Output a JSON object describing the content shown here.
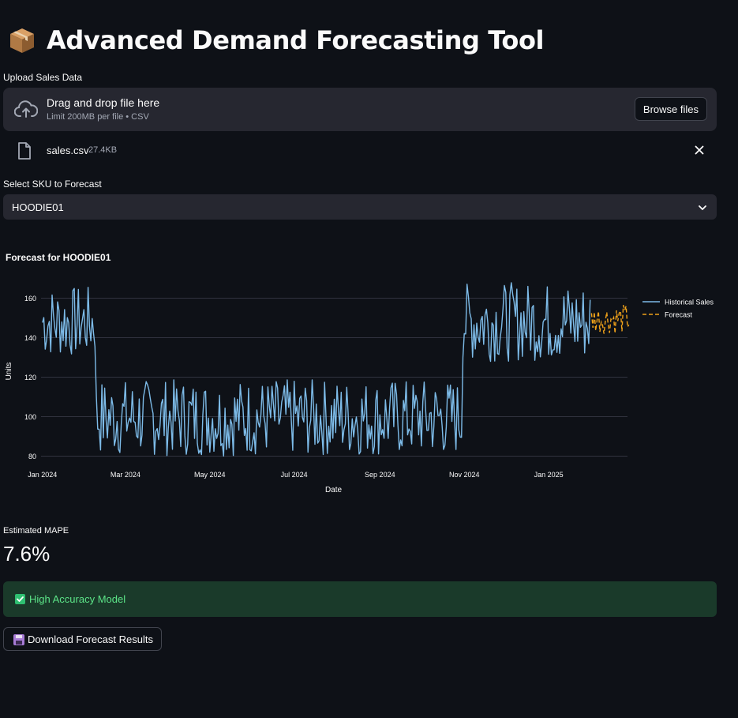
{
  "header": {
    "title": "Advanced Demand Forecasting Tool",
    "icon": "package-box-icon"
  },
  "uploader": {
    "label": "Upload Sales Data",
    "dropzone_title": "Drag and drop file here",
    "dropzone_subtitle": "Limit 200MB per file • CSV",
    "browse_label": "Browse files",
    "file": {
      "name": "sales.csv",
      "size": "27.4KB"
    }
  },
  "sku_select": {
    "label": "Select SKU to Forecast",
    "value": "HOODIE01"
  },
  "chart_title": "Forecast for HOODIE01",
  "chart_data": {
    "type": "line",
    "xlabel": "Date",
    "ylabel": "Units",
    "ylim": [
      79,
      167
    ],
    "xlim": [
      "2023-12-31",
      "2025-02-27"
    ],
    "grid": true,
    "legend_position": "top-right",
    "x_ticks": [
      {
        "date": "2024-01-01",
        "label": "Jan 2024"
      },
      {
        "date": "2024-03-01",
        "label": "Mar 2024"
      },
      {
        "date": "2024-05-01",
        "label": "May 2024"
      },
      {
        "date": "2024-07-01",
        "label": "Jul 2024"
      },
      {
        "date": "2024-09-01",
        "label": "Sep 2024"
      },
      {
        "date": "2024-11-01",
        "label": "Nov 2024"
      },
      {
        "date": "2025-01-01",
        "label": "Jan 2025"
      }
    ],
    "y_ticks": [
      80,
      100,
      120,
      140,
      160
    ],
    "series": [
      {
        "name": "Historical Sales",
        "color": "#7dbbe8",
        "dash": "solid",
        "start": "2024-01-01",
        "end": "2025-01-31",
        "segments": [
          {
            "from": "2024-01-01",
            "to": "2024-02-08",
            "low": 130,
            "high": 166
          },
          {
            "from": "2024-02-08",
            "to": "2024-10-30",
            "low": 80,
            "high": 119
          },
          {
            "from": "2024-10-30",
            "to": "2025-01-31",
            "low": 128,
            "high": 168
          }
        ]
      },
      {
        "name": "Forecast",
        "color": "#f0a21a",
        "dash": "dashed",
        "start": "2025-02-01",
        "end": "2025-02-28",
        "low": 142,
        "high": 157
      }
    ]
  },
  "metric": {
    "label": "Estimated MAPE",
    "value": "7.6%"
  },
  "alert": {
    "text": "High Accuracy Model",
    "icon": "check-mark-icon"
  },
  "download_button": {
    "label": "Download Forecast Results",
    "icon": "floppy-disk-icon"
  }
}
